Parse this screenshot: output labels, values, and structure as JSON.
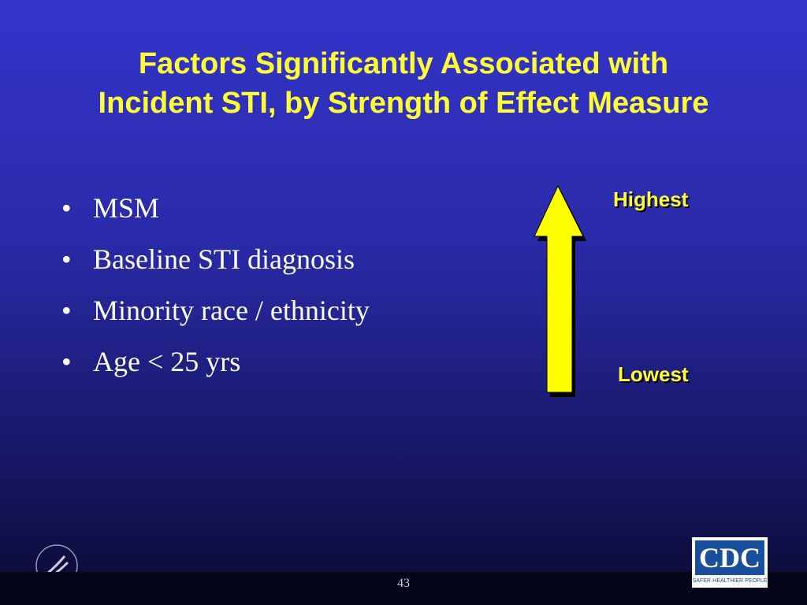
{
  "slide": {
    "title_lines": [
      "Factors Significantly Associated with",
      "Incident STI, by Strength of Effect Measure"
    ],
    "bullets": [
      "MSM",
      "Baseline STI diagnosis",
      "Minority race / ethnicity",
      "Age < 25 yrs"
    ],
    "scale_high": "Highest",
    "scale_low": "Lowest",
    "logo_text": "CDC",
    "logo_tagline": "SAFER·HEALTHIER·PEOPLE",
    "page_number": "43"
  }
}
